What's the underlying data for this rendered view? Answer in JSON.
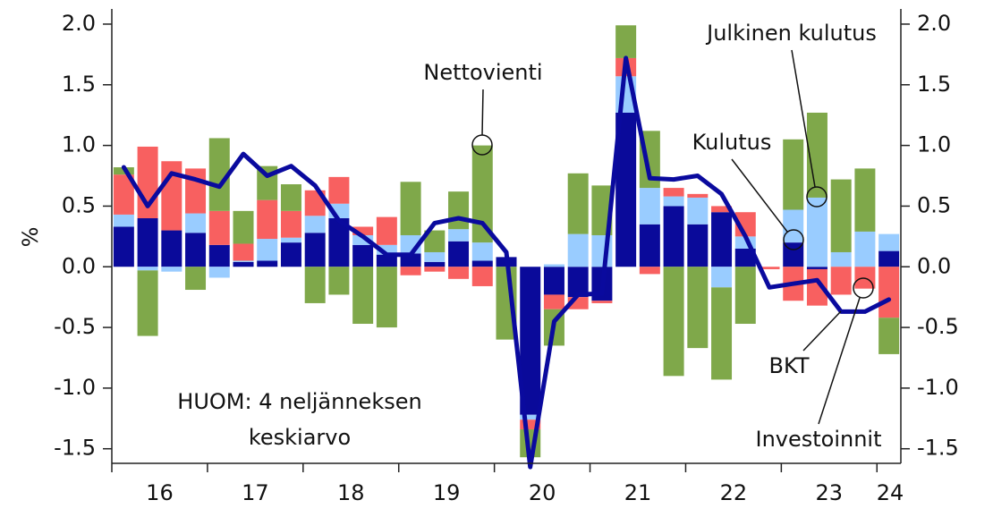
{
  "chart_data": {
    "type": "bar",
    "stacked": true,
    "y_label": "%",
    "note": [
      "HUOM: 4 neljänneksen",
      "keskiarvo"
    ],
    "year_labels": [
      "16",
      "17",
      "18",
      "19",
      "20",
      "21",
      "22",
      "23",
      "24"
    ],
    "categories": [
      null,
      null,
      null,
      null,
      null,
      null,
      null,
      null,
      null,
      null,
      null,
      null,
      null,
      null,
      null,
      null,
      null,
      null,
      null,
      null,
      null,
      null,
      null,
      null,
      null,
      null,
      null,
      null,
      null,
      null,
      null,
      null,
      null
    ],
    "ylim": [
      -1.62,
      2.125
    ],
    "yticks": [
      {
        "value": 2.0,
        "label": "2.0"
      },
      1.5,
      {
        "value": 1.0,
        "label": "1.0"
      },
      0.5,
      {
        "value": 0.0,
        "label": "0.0"
      },
      -0.5,
      {
        "value": -1.0,
        "label": "-1.0"
      },
      -1.5
    ],
    "y2lim": [
      -1.62,
      2.125
    ],
    "y2ticks": [
      {
        "value": 2.0,
        "label": "2.0"
      },
      1.5,
      {
        "value": 1.0,
        "label": "1.0"
      },
      0.5,
      {
        "value": 0.0,
        "label": "0.0"
      },
      -0.5,
      {
        "value": -1.0,
        "label": "-1.0"
      },
      -1.5
    ],
    "series": [
      {
        "name": "Kulutus",
        "color": "#0a0a9a",
        "values": [
          0.33,
          0.4,
          0.3,
          0.28,
          0.18,
          0.04,
          0.05,
          0.2,
          0.28,
          0.4,
          0.18,
          0.1,
          0.11,
          0.04,
          0.21,
          0.05,
          0.08,
          -1.22,
          -0.23,
          -0.25,
          -0.28,
          1.27,
          0.35,
          0.5,
          0.35,
          0.45,
          0.15,
          0.0,
          0.2,
          -0.02,
          0.0,
          0.0,
          0.13
        ]
      },
      {
        "name": "Julkinen kulutus",
        "color": "#99ccff",
        "values": [
          0.1,
          -0.03,
          -0.04,
          0.16,
          -0.09,
          0.01,
          0.18,
          0.04,
          0.14,
          0.12,
          0.08,
          0.08,
          0.15,
          0.08,
          0.1,
          0.15,
          0.0,
          -0.04,
          0.02,
          0.27,
          0.26,
          0.3,
          0.3,
          0.08,
          0.22,
          -0.17,
          0.1,
          0.0,
          0.27,
          0.57,
          0.12,
          0.29,
          0.14
        ]
      },
      {
        "name": "Investoinnit",
        "color": "#f86060",
        "values": [
          0.33,
          0.59,
          0.57,
          0.37,
          0.28,
          0.14,
          0.32,
          0.22,
          0.21,
          0.22,
          0.07,
          0.23,
          -0.07,
          -0.04,
          -0.1,
          -0.16,
          0.0,
          -0.08,
          -0.12,
          -0.1,
          -0.02,
          0.15,
          -0.06,
          0.07,
          0.03,
          0.05,
          0.2,
          -0.02,
          -0.28,
          -0.3,
          -0.23,
          -0.18,
          -0.42
        ]
      },
      {
        "name": "Nettovienti",
        "color": "#7fa84a",
        "values": [
          0.06,
          -0.54,
          0.0,
          -0.19,
          0.6,
          0.27,
          0.28,
          0.22,
          -0.3,
          -0.23,
          -0.47,
          -0.5,
          0.44,
          0.18,
          0.31,
          0.8,
          -0.6,
          -0.23,
          -0.3,
          0.5,
          0.41,
          0.27,
          0.47,
          -0.9,
          -0.67,
          -0.76,
          -0.47,
          0.0,
          0.58,
          0.7,
          0.6,
          0.52,
          -0.3
        ]
      },
      {
        "name": "BKT",
        "type": "line",
        "color": "#0a0a9e",
        "values": [
          0.82,
          0.5,
          0.77,
          0.72,
          0.66,
          0.93,
          0.75,
          0.83,
          0.67,
          0.38,
          0.25,
          0.1,
          0.1,
          0.36,
          0.4,
          0.36,
          0.12,
          -1.65,
          -0.45,
          -0.23,
          -0.22,
          1.72,
          0.73,
          0.72,
          0.75,
          0.6,
          0.25,
          -0.17,
          -0.14,
          -0.11,
          -0.37,
          -0.37,
          -0.27
        ]
      }
    ]
  }
}
